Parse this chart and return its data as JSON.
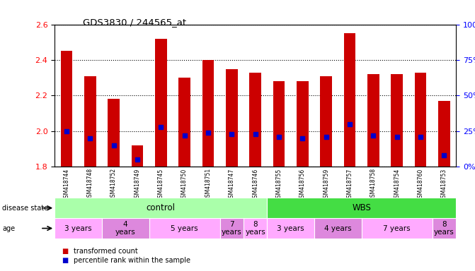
{
  "title": "GDS3830 / 244565_at",
  "samples": [
    "GSM418744",
    "GSM418748",
    "GSM418752",
    "GSM418749",
    "GSM418745",
    "GSM418750",
    "GSM418751",
    "GSM418747",
    "GSM418746",
    "GSM418755",
    "GSM418756",
    "GSM418759",
    "GSM418757",
    "GSM418758",
    "GSM418754",
    "GSM418760",
    "GSM418753"
  ],
  "transformed_count": [
    2.45,
    2.31,
    2.18,
    1.92,
    2.52,
    2.3,
    2.4,
    2.35,
    2.33,
    2.28,
    2.28,
    2.31,
    2.55,
    2.32,
    2.32,
    2.33,
    2.17
  ],
  "percentile_rank": [
    25,
    20,
    15,
    5,
    28,
    22,
    24,
    23,
    23,
    21,
    20,
    21,
    30,
    22,
    21,
    21,
    8
  ],
  "ylim": [
    1.8,
    2.6
  ],
  "yticks_left": [
    1.8,
    2.0,
    2.2,
    2.4,
    2.6
  ],
  "yticks_right": [
    0,
    25,
    50,
    75,
    100
  ],
  "bar_color": "#cc0000",
  "marker_color": "#0000cc",
  "bar_width": 0.5,
  "disease_state_groups": [
    {
      "label": "control",
      "start": 0,
      "end": 9,
      "color": "#aaffaa"
    },
    {
      "label": "WBS",
      "start": 9,
      "end": 17,
      "color": "#44dd44"
    }
  ],
  "age_groups": [
    {
      "label": "3 years",
      "start": 0,
      "end": 2,
      "color": "#ffaaff"
    },
    {
      "label": "4\nyears",
      "start": 2,
      "end": 4,
      "color": "#dd88dd"
    },
    {
      "label": "5 years",
      "start": 4,
      "end": 7,
      "color": "#ffaaff"
    },
    {
      "label": "7\nyears",
      "start": 7,
      "end": 8,
      "color": "#dd88dd"
    },
    {
      "label": "8\nyears",
      "start": 8,
      "end": 9,
      "color": "#ffaaff"
    },
    {
      "label": "3 years",
      "start": 9,
      "end": 11,
      "color": "#ffaaff"
    },
    {
      "label": "4 years",
      "start": 11,
      "end": 13,
      "color": "#dd88dd"
    },
    {
      "label": "7 years",
      "start": 13,
      "end": 16,
      "color": "#ffaaff"
    },
    {
      "label": "8\nyears",
      "start": 16,
      "end": 17,
      "color": "#dd88dd"
    }
  ],
  "legend": [
    {
      "label": "transformed count",
      "color": "#cc0000"
    },
    {
      "label": "percentile rank within the sample",
      "color": "#0000cc"
    }
  ]
}
